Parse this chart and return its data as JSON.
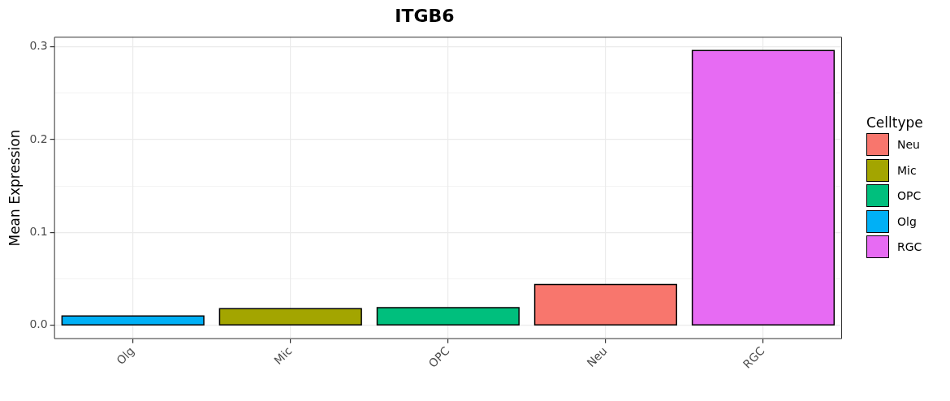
{
  "chart_data": {
    "type": "bar",
    "title": "ITGB6",
    "ylabel": "Mean Expression",
    "legend_title": "Celltype",
    "categories": [
      "Olg",
      "Mic",
      "OPC",
      "Neu",
      "RGC"
    ],
    "series": [
      {
        "name": "Neu",
        "color": "#f8766d",
        "values": [
          null,
          null,
          null,
          0.044,
          null
        ]
      },
      {
        "name": "Mic",
        "color": "#a3a500",
        "values": [
          null,
          0.018,
          null,
          null,
          null
        ]
      },
      {
        "name": "OPC",
        "color": "#00bf7d",
        "values": [
          null,
          null,
          0.019,
          null,
          null
        ]
      },
      {
        "name": "Olg",
        "color": "#00b0f6",
        "values": [
          0.01,
          null,
          null,
          null,
          null
        ]
      },
      {
        "name": "RGC",
        "color": "#e76bf3",
        "values": [
          null,
          null,
          null,
          null,
          0.296
        ]
      }
    ],
    "ylim": [
      -0.0148,
      0.3108
    ],
    "yticks": [
      {
        "value": 0,
        "label": "0.0"
      },
      {
        "value": 0.05,
        "label": null
      },
      0.1,
      {
        "value": 0.15,
        "label": null
      },
      0.2,
      {
        "value": 0.25,
        "label": null
      },
      0.3
    ],
    "grid": true,
    "legend": "right"
  }
}
